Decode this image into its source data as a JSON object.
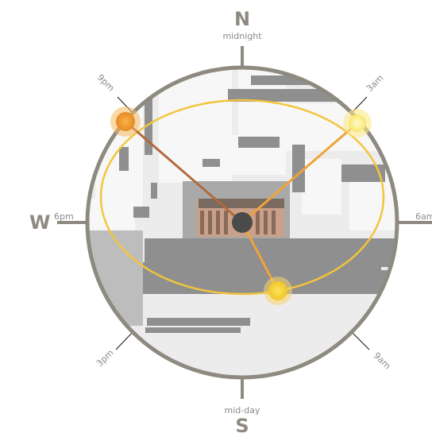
{
  "compass": {
    "north": "N",
    "south": "S",
    "west": "W",
    "north_label": "midnight",
    "south_label": "mid-day",
    "east_label": "6am",
    "west_label": "6pm",
    "diag_ne": "3am",
    "diag_se": "9am",
    "diag_sw": "3pm",
    "diag_nw": "9pm"
  },
  "colors": {
    "ring": "#8e8a80",
    "orbit": "#f2c53d",
    "sun_orange": "#ef9a2e",
    "sun_yellow": "#f5d339",
    "sun_pale": "#fdf07a",
    "line_dark": "#b06a3c",
    "line_light": "#f0a33a",
    "center": "#4a4a4a"
  },
  "icons": {
    "center": "observer-dot-icon",
    "sun": "sun-marker-icon"
  }
}
